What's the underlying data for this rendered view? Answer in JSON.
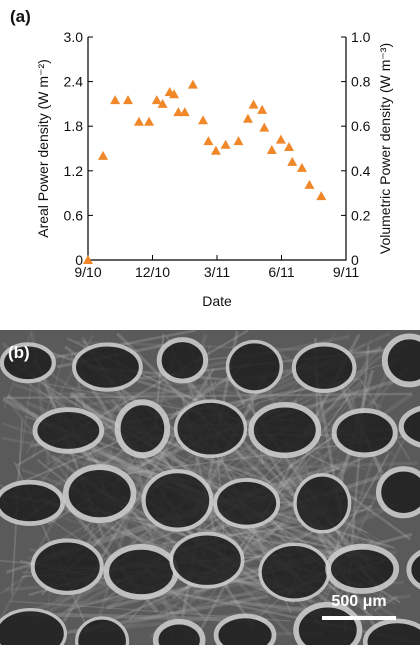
{
  "panel_a_label": "(a)",
  "chart_data": {
    "type": "scatter",
    "x_label": "Date",
    "y_label": "Areal Power density (W m⁻²)",
    "y2_label": "Volumetric Power density (W m⁻³)",
    "x": [
      0,
      0.7,
      1.26,
      1.86,
      2.37,
      2.84,
      3.2,
      3.47,
      3.8,
      4.0,
      4.2,
      4.5,
      4.88,
      5.35,
      5.6,
      5.95,
      6.4,
      7.0,
      7.44,
      7.7,
      8.1,
      8.2,
      8.55,
      8.97,
      9.35,
      9.5,
      9.95,
      10.3,
      10.85
    ],
    "values": [
      0,
      1.4,
      2.15,
      2.15,
      1.86,
      1.86,
      2.15,
      2.1,
      2.26,
      2.23,
      1.99,
      1.99,
      2.36,
      1.88,
      1.6,
      1.47,
      1.55,
      1.6,
      1.9,
      2.09,
      2.02,
      1.78,
      1.48,
      1.62,
      1.52,
      1.32,
      1.24,
      1.01,
      0.86
    ],
    "color": "#f0882a",
    "xlim": [
      0,
      12
    ],
    "xticks": [
      {
        "value": 0,
        "label": "9/10"
      },
      {
        "value": 3,
        "label": "12/10"
      },
      {
        "value": 6,
        "label": "3/11"
      },
      {
        "value": 9,
        "label": "6/11"
      },
      {
        "value": 12,
        "label": "9/11"
      }
    ],
    "ylim": [
      0,
      3
    ],
    "yticks": [
      0,
      0.6,
      1.2,
      1.8,
      2.4,
      {
        "value": 3,
        "label": "3.0"
      }
    ],
    "y2lim": [
      0,
      1
    ],
    "y2ticks": [
      0,
      0.2,
      0.4,
      0.6,
      0.8,
      {
        "value": 1,
        "label": "1.0"
      }
    ]
  },
  "panel_b_label": "(b)",
  "scale_bar": "500 μm"
}
